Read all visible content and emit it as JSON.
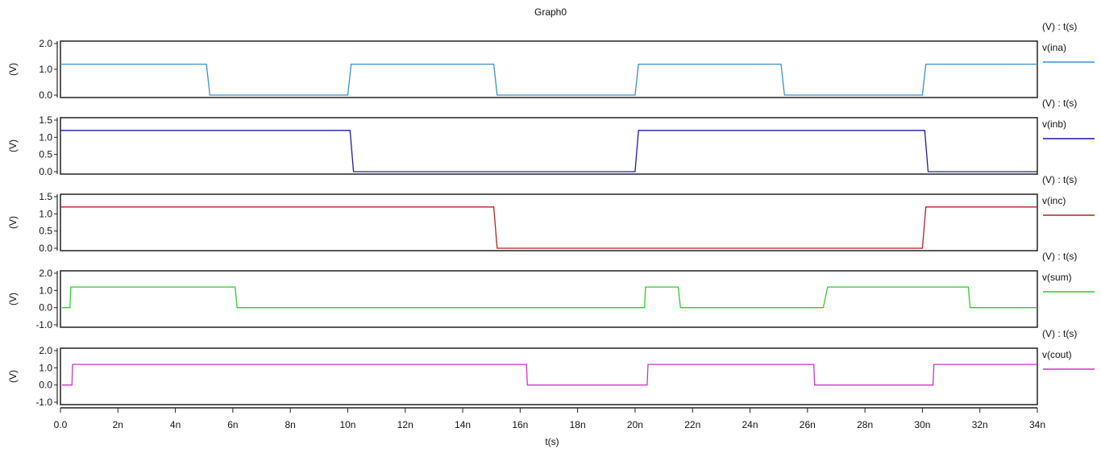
{
  "chart_data": {
    "type": "line",
    "title": "Graph0",
    "xlabel": "t(s)",
    "x_unit": "ns",
    "xlim": [
      0,
      34
    ],
    "x_ticks": [
      0,
      2,
      4,
      6,
      8,
      10,
      12,
      14,
      16,
      18,
      20,
      22,
      24,
      26,
      28,
      30,
      32,
      34
    ],
    "x_tick_labels": [
      "0.0",
      "2n",
      "4n",
      "6n",
      "8n",
      "10n",
      "12n",
      "14n",
      "16n",
      "18n",
      "20n",
      "22n",
      "24n",
      "26n",
      "28n",
      "30n",
      "32n",
      "34n"
    ],
    "grid": false,
    "legend_position": "right of each panel",
    "panels": [
      {
        "name": "v(ina)",
        "header": "(V) : t(s)",
        "ylabel": "(V)",
        "color": "#3a8fd0",
        "ylim": [
          0,
          2.0
        ],
        "y_ticks": [
          0.0,
          1.0,
          2.0
        ],
        "y_tick_labels": [
          "0.0",
          "1.0",
          "2.0"
        ],
        "points": [
          [
            0,
            1.2
          ],
          [
            5.08,
            1.2
          ],
          [
            5.2,
            0
          ],
          [
            10.0,
            0
          ],
          [
            10.12,
            1.2
          ],
          [
            15.08,
            1.2
          ],
          [
            15.2,
            0
          ],
          [
            20.0,
            0
          ],
          [
            20.12,
            1.2
          ],
          [
            25.08,
            1.2
          ],
          [
            25.2,
            0
          ],
          [
            30.0,
            0
          ],
          [
            30.12,
            1.2
          ],
          [
            34,
            1.2
          ]
        ]
      },
      {
        "name": "v(inb)",
        "header": "(V) : t(s)",
        "ylabel": "(V)",
        "color": "#1a1aa8",
        "ylim": [
          0,
          1.5
        ],
        "y_ticks": [
          0.0,
          0.5,
          1.0,
          1.5
        ],
        "y_tick_labels": [
          "0.0",
          "0.5",
          "1.0",
          "1.5"
        ],
        "points": [
          [
            0,
            1.2
          ],
          [
            10.08,
            1.2
          ],
          [
            10.2,
            0
          ],
          [
            20.0,
            0
          ],
          [
            20.12,
            1.2
          ],
          [
            30.08,
            1.2
          ],
          [
            30.2,
            0
          ],
          [
            34,
            0
          ]
        ]
      },
      {
        "name": "v(inc)",
        "header": "(V) : t(s)",
        "ylabel": "(V)",
        "color": "#b22222",
        "ylim": [
          0,
          1.5
        ],
        "y_ticks": [
          0.0,
          0.5,
          1.0,
          1.5
        ],
        "y_tick_labels": [
          "0.0",
          "0.5",
          "1.0",
          "1.5"
        ],
        "points": [
          [
            0,
            1.2
          ],
          [
            15.08,
            1.2
          ],
          [
            15.2,
            0
          ],
          [
            30.0,
            0
          ],
          [
            30.12,
            1.2
          ],
          [
            34,
            1.2
          ]
        ]
      },
      {
        "name": "v(sum)",
        "header": "(V) : t(s)",
        "ylabel": "(V)",
        "color": "#2ecc2e",
        "ylim": [
          -1.0,
          2.0
        ],
        "y_ticks": [
          -1.0,
          0.0,
          1.0,
          2.0
        ],
        "y_tick_labels": [
          "-1.0",
          "0.0",
          "1.0",
          "2.0"
        ],
        "points": [
          [
            0.05,
            0
          ],
          [
            0.33,
            0
          ],
          [
            0.36,
            1.2
          ],
          [
            6.08,
            1.2
          ],
          [
            6.15,
            0
          ],
          [
            20.33,
            0
          ],
          [
            20.36,
            1.2
          ],
          [
            21.5,
            1.2
          ],
          [
            21.58,
            0
          ],
          [
            26.55,
            0
          ],
          [
            26.7,
            1.2
          ],
          [
            31.6,
            1.2
          ],
          [
            31.66,
            0
          ],
          [
            34,
            0
          ]
        ]
      },
      {
        "name": "v(cout)",
        "header": "(V) : t(s)",
        "ylabel": "(V)",
        "color": "#cc33cc",
        "ylim": [
          -1.0,
          2.0
        ],
        "y_ticks": [
          -1.0,
          0.0,
          1.0,
          2.0
        ],
        "y_tick_labels": [
          "-1.0",
          "0.0",
          "1.0",
          "2.0"
        ],
        "points": [
          [
            0.05,
            0
          ],
          [
            0.4,
            0
          ],
          [
            0.42,
            1.2
          ],
          [
            16.22,
            1.2
          ],
          [
            16.25,
            0
          ],
          [
            20.42,
            0
          ],
          [
            20.45,
            1.2
          ],
          [
            26.22,
            1.2
          ],
          [
            26.25,
            0
          ],
          [
            30.37,
            0
          ],
          [
            30.4,
            1.2
          ],
          [
            34,
            1.2
          ]
        ]
      }
    ]
  }
}
